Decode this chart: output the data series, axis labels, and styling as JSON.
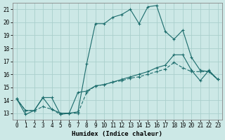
{
  "title": "",
  "xlabel": "Humidex (Indice chaleur)",
  "xlim": [
    -0.5,
    23.5
  ],
  "ylim": [
    12.5,
    21.5
  ],
  "xticks": [
    0,
    1,
    2,
    3,
    4,
    5,
    6,
    7,
    8,
    9,
    10,
    11,
    12,
    13,
    14,
    15,
    16,
    17,
    18,
    19,
    20,
    21,
    22,
    23
  ],
  "yticks": [
    13,
    14,
    15,
    16,
    17,
    18,
    19,
    20,
    21
  ],
  "background_color": "#cce8e6",
  "grid_color": "#aacfcc",
  "line_color": "#1a6b6b",
  "lines": [
    {
      "y": [
        14.1,
        12.9,
        13.2,
        14.2,
        14.2,
        12.9,
        13.0,
        13.1,
        16.8,
        19.9,
        19.9,
        20.4,
        20.6,
        21.0,
        19.9,
        21.2,
        21.3,
        19.3,
        18.7,
        19.4,
        17.3,
        16.3,
        16.2,
        15.6
      ],
      "linestyle": "-",
      "linewidth": 0.8
    },
    {
      "y": [
        14.1,
        13.2,
        13.2,
        14.2,
        13.3,
        13.0,
        13.0,
        14.6,
        14.7,
        15.1,
        15.2,
        15.4,
        15.6,
        15.8,
        16.0,
        16.2,
        16.5,
        16.7,
        17.5,
        17.5,
        16.3,
        15.5,
        16.3,
        15.6
      ],
      "linestyle": "-",
      "linewidth": 0.8
    },
    {
      "y": [
        14.1,
        13.2,
        13.2,
        13.5,
        13.3,
        12.9,
        13.0,
        13.0,
        14.6,
        15.1,
        15.2,
        15.4,
        15.5,
        15.7,
        15.8,
        16.0,
        16.2,
        16.4,
        16.9,
        16.5,
        16.2,
        16.2,
        16.2,
        15.6
      ],
      "linestyle": "--",
      "linewidth": 0.8
    }
  ]
}
